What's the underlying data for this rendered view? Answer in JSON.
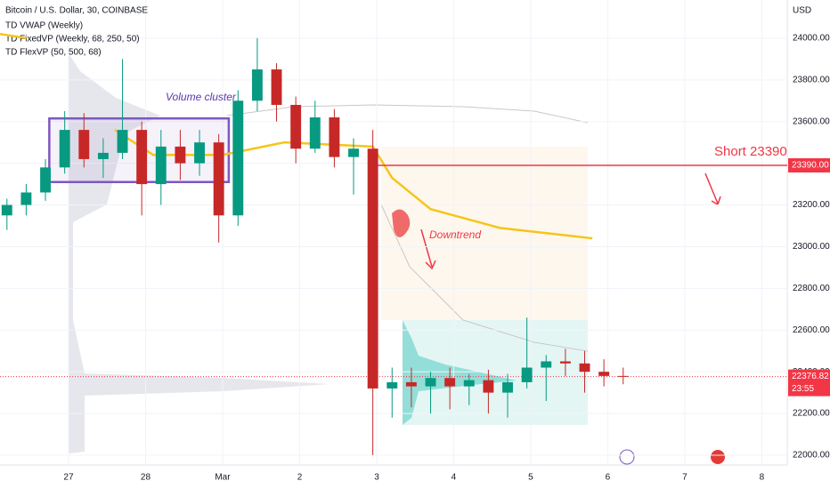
{
  "chart_data": {
    "type": "candlestick",
    "title": "Bitcoin / U.S. Dollar, 30, COINBASE",
    "indicators": [
      "TD VWAP (Weekly)",
      "TD FixedVP (Weekly, 68, 250, 50)",
      "TD FlexVP (50, 500, 68)"
    ],
    "y_axis_label": "USD",
    "colors": {
      "up": "#089981",
      "down": "#c62828",
      "vwap": "#f5c518",
      "short": "#f23645",
      "box": "#7e57c2"
    },
    "x": [
      0.2,
      0.45,
      0.7,
      0.95,
      1.2,
      1.45,
      1.7,
      1.95,
      2.2,
      2.45,
      2.7,
      2.95,
      3.2,
      3.45,
      3.7,
      3.95,
      4.2,
      4.45,
      4.7,
      4.95,
      5.2,
      5.45,
      5.7,
      5.95,
      6.2,
      6.45,
      6.7,
      6.95,
      7.2,
      7.45,
      7.7,
      7.95,
      8.2
    ],
    "open": [
      23150,
      23200,
      23260,
      23380,
      23560,
      23420,
      23450,
      23560,
      23300,
      23480,
      23400,
      23500,
      23150,
      23700,
      23850,
      23680,
      23470,
      23620,
      23430,
      23470,
      22320,
      22350,
      22330,
      22370,
      22330,
      22360,
      22300,
      22350,
      22420,
      22450,
      22440,
      22400,
      22380
    ],
    "high": [
      23230,
      23300,
      23420,
      23650,
      23640,
      23520,
      23900,
      23600,
      23560,
      23560,
      23560,
      23540,
      23750,
      24000,
      23880,
      23720,
      23700,
      23660,
      23520,
      23560,
      22420,
      22420,
      22400,
      22420,
      22390,
      22410,
      22390,
      22660,
      22480,
      22510,
      22500,
      22460,
      22420
    ],
    "low": [
      23080,
      23150,
      23220,
      23350,
      23380,
      23330,
      23420,
      23150,
      23200,
      23320,
      23340,
      23020,
      23100,
      23650,
      23600,
      23400,
      23450,
      23380,
      23250,
      22000,
      22180,
      22230,
      22200,
      22220,
      22240,
      22200,
      22180,
      22320,
      22260,
      22380,
      22300,
      22330,
      22340
    ],
    "close": [
      23200,
      23260,
      23380,
      23560,
      23420,
      23450,
      23560,
      23300,
      23480,
      23400,
      23500,
      23150,
      23700,
      23850,
      23680,
      23470,
      23620,
      23430,
      23470,
      22320,
      22350,
      22330,
      22370,
      22330,
      22360,
      22300,
      22350,
      22420,
      22450,
      22440,
      22400,
      22380,
      22376.82
    ],
    "vwap": {
      "name": "TD VWAP (Weekly)",
      "x": [
        0.11,
        0.45,
        1.0,
        1.6,
        2.1,
        3.0,
        3.8,
        4.95,
        5.2,
        5.7,
        6.6,
        7.8
      ],
      "values": [
        24020,
        24000,
        null,
        23560,
        23440,
        23440,
        23500,
        23480,
        23330,
        23180,
        23090,
        23040
      ]
    },
    "box": {
      "x": [
        0.75,
        3.08
      ],
      "y": [
        23310,
        23615
      ]
    },
    "annotations": [
      "Volume cluster",
      "Downtrend",
      "Short 23390"
    ],
    "short_level": {
      "value": 23390,
      "label": "23390.00"
    },
    "last_price": {
      "value": 22376.82,
      "label": "22376.82",
      "countdown": "23:55"
    },
    "xlim": [
      0.11,
      10.33
    ],
    "ylim": [
      21953,
      24183
    ],
    "xticks": [
      {
        "value": 1,
        "label": "27"
      },
      {
        "value": 2,
        "label": "28"
      },
      {
        "value": 3,
        "label": "Mar"
      },
      {
        "value": 4,
        "label": "2"
      },
      {
        "value": 5,
        "label": "3"
      },
      {
        "value": 6,
        "label": "4"
      },
      {
        "value": 7,
        "label": "5"
      },
      {
        "value": 8,
        "label": "6"
      },
      {
        "value": 9,
        "label": "7"
      },
      {
        "value": 10,
        "label": "8"
      }
    ],
    "yticks": [
      {
        "value": 22000,
        "label": "22000.00"
      },
      {
        "value": 22200,
        "label": "22200.00"
      },
      {
        "value": 22400,
        "label": "22400.00"
      },
      {
        "value": 22600,
        "label": "22600.00"
      },
      {
        "value": 22800,
        "label": "22800.00"
      },
      {
        "value": 23000,
        "label": "23000.00"
      },
      {
        "value": 23200,
        "label": "23200.00"
      },
      {
        "value": 23400,
        "label": "23400.00"
      },
      {
        "value": 23600,
        "label": "23600.00"
      },
      {
        "value": 23800,
        "label": "23800.00"
      },
      {
        "value": 24000,
        "label": "24000.00"
      }
    ],
    "grid": true
  }
}
